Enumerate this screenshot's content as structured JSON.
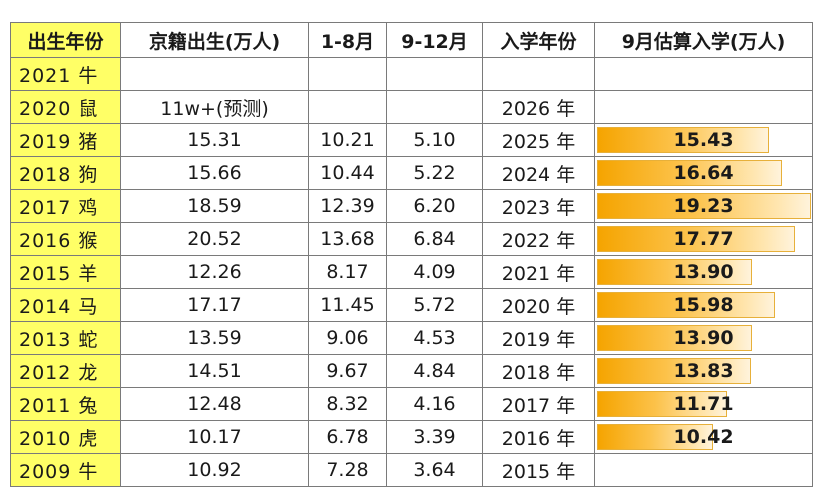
{
  "table": {
    "headers": [
      "出生年份",
      "京籍出生(万人)",
      "1-8月",
      "9-12月",
      "入学年份",
      "9月估算入学(万人)"
    ],
    "rows": [
      {
        "year": "2021 牛",
        "births": "",
        "jan_aug": "",
        "sep_dec": "",
        "school_year": "",
        "enroll": null
      },
      {
        "year": "2020 鼠",
        "births": "11w+(预测)",
        "jan_aug": "",
        "sep_dec": "",
        "school_year": "2026 年",
        "enroll": null
      },
      {
        "year": "2019 猪",
        "births": "15.31",
        "jan_aug": "10.21",
        "sep_dec": "5.10",
        "school_year": "2025 年",
        "enroll": 15.43
      },
      {
        "year": "2018 狗",
        "births": "15.66",
        "jan_aug": "10.44",
        "sep_dec": "5.22",
        "school_year": "2024 年",
        "enroll": 16.64
      },
      {
        "year": "2017 鸡",
        "births": "18.59",
        "jan_aug": "12.39",
        "sep_dec": "6.20",
        "school_year": "2023 年",
        "enroll": 19.23
      },
      {
        "year": "2016 猴",
        "births": "20.52",
        "jan_aug": "13.68",
        "sep_dec": "6.84",
        "school_year": "2022 年",
        "enroll": 17.77
      },
      {
        "year": "2015 羊",
        "births": "12.26",
        "jan_aug": "8.17",
        "sep_dec": "4.09",
        "school_year": "2021 年",
        "enroll": 13.9
      },
      {
        "year": "2014 马",
        "births": "17.17",
        "jan_aug": "11.45",
        "sep_dec": "5.72",
        "school_year": "2020 年",
        "enroll": 15.98
      },
      {
        "year": "2013 蛇",
        "births": "13.59",
        "jan_aug": "9.06",
        "sep_dec": "4.53",
        "school_year": "2019 年",
        "enroll": 13.9
      },
      {
        "year": "2012 龙",
        "births": "14.51",
        "jan_aug": "9.67",
        "sep_dec": "4.84",
        "school_year": "2018 年",
        "enroll": 13.83
      },
      {
        "year": "2011 兔",
        "births": "12.48",
        "jan_aug": "8.32",
        "sep_dec": "4.16",
        "school_year": "2017 年",
        "enroll": 11.71
      },
      {
        "year": "2010 虎",
        "births": "10.17",
        "jan_aug": "6.78",
        "sep_dec": "3.39",
        "school_year": "2016 年",
        "enroll": 10.42
      },
      {
        "year": "2009 牛",
        "births": "10.92",
        "jan_aug": "7.28",
        "sep_dec": "3.64",
        "school_year": "2015 年",
        "enroll": null
      }
    ],
    "enroll_bar_max": 19.23,
    "colors": {
      "year_fill": "#ffff66",
      "bar_start": "#f5a400",
      "bar_end": "#fff3dc",
      "grid": "#7a7a7a"
    }
  }
}
